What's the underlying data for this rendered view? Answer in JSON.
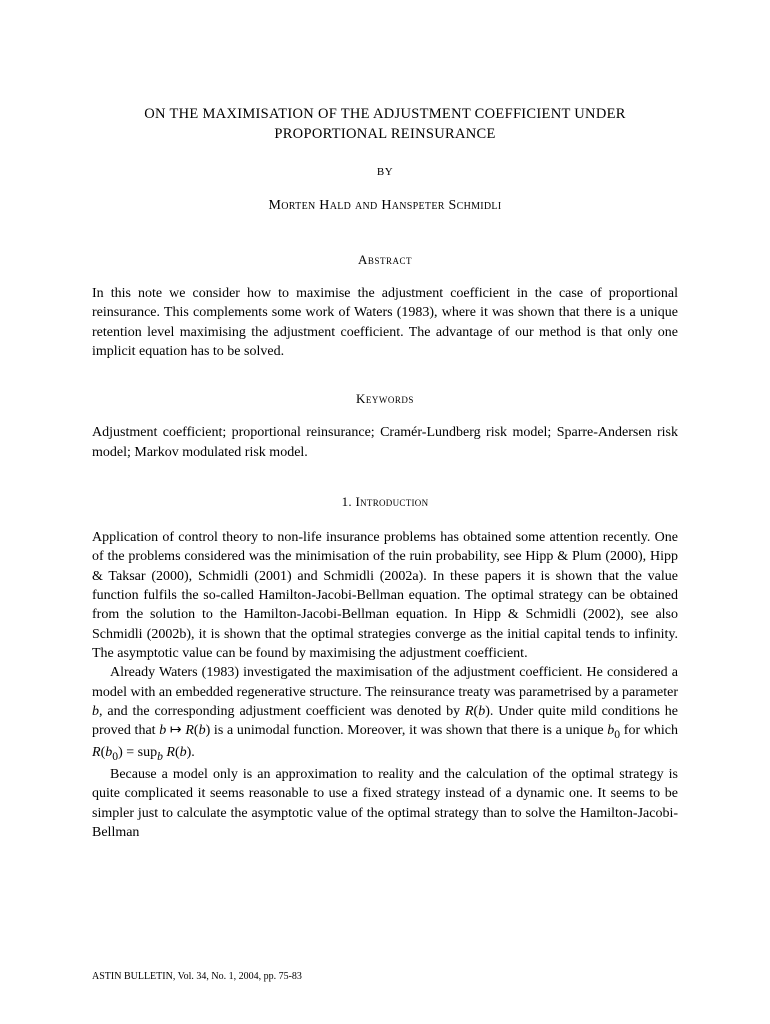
{
  "title": "ON THE MAXIMISATION OF THE ADJUSTMENT COEFFICIENT UNDER PROPORTIONAL REINSURANCE",
  "by": "BY",
  "authors": "Morten Hald and Hanspeter Schmidli",
  "abstract_heading": "Abstract",
  "abstract_text": "In this note we consider how to maximise the adjustment coefficient in the case of proportional reinsurance. This complements some work of Waters (1983), where it was shown that there is a unique retention level maximising the adjustment coefficient. The advantage of our method is that only one implicit equation has to be solved.",
  "keywords_heading": "Keywords",
  "keywords_text": "Adjustment coefficient; proportional reinsurance; Cramér-Lundberg risk model; Sparre-Andersen risk model; Markov modulated risk model.",
  "intro_heading": "1.  Introduction",
  "para1": "Application of control theory to non-life insurance problems has obtained some attention recently. One of the problems considered was the minimisation of the ruin probability, see Hipp & Plum (2000), Hipp & Taksar (2000), Schmidli (2001) and Schmidli (2002a). In these papers it is shown that the value function fulfils the so-called Hamilton-Jacobi-Bellman equation. The optimal strategy can be obtained from the solution to the Hamilton-Jacobi-Bellman equation. In Hipp & Schmidli (2002), see also Schmidli (2002b), it is shown that the optimal strategies converge as the initial capital tends to infinity. The asymptotic value can be found by maximising the adjustment coefficient.",
  "para2_pre": "Already Waters (1983) investigated the maximisation of the adjustment coefficient. He considered a model with an embedded regenerative structure. The reinsurance treaty was parametrised by a parameter ",
  "para2_b": "b",
  "para2_mid1": ", and the corresponding adjustment coefficient was denoted by ",
  "para2_R": "R",
  "para2_paren1": "(",
  "para2_b2": "b",
  "para2_paren2": ")",
  "para2_mid2": ". Under quite mild conditions he proved that ",
  "para2_b3": "b",
  "para2_arrow": " ↦ ",
  "para2_R2": "R",
  "para2_paren3": "(",
  "para2_b4": "b",
  "para2_paren4": ")",
  "para2_mid3": " is a unimodal function. Moreover, it was shown that there is a unique ",
  "para2_b0": "b",
  "para2_sub0": "0",
  "para2_mid4": " for which ",
  "para2_R3": "R",
  "para2_paren5": "(",
  "para2_b5": "b",
  "para2_sub0b": "0",
  "para2_paren6": ")",
  "para2_eq": " = sup",
  "para2_subb": "b",
  "para2_R4": " R",
  "para2_paren7": "(",
  "para2_b6": "b",
  "para2_paren8": ").",
  "para3": "Because a model only is an approximation to reality and the calculation of the optimal strategy is quite complicated it seems reasonable to use a fixed strategy instead of a dynamic one. It seems to be simpler just to calculate the asymptotic value of the optimal strategy than to solve the Hamilton-Jacobi-Bellman",
  "footer": "ASTIN BULLETIN, Vol. 34, No. 1, 2004, pp. 75-83"
}
